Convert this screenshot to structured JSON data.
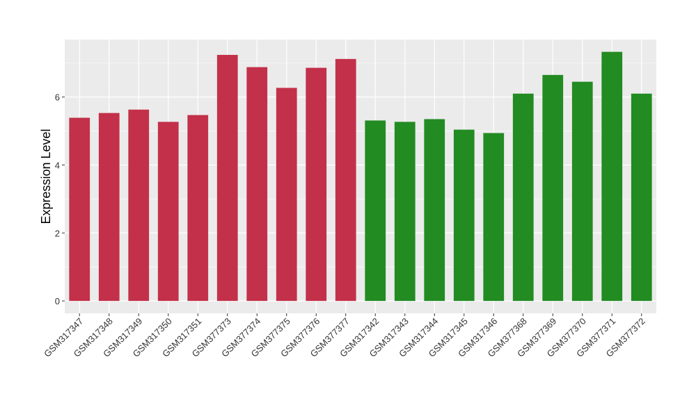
{
  "chart_data": {
    "type": "bar",
    "y_label": "Expression Level",
    "categories": [
      "GSM317347",
      "GSM317348",
      "GSM317349",
      "GSM317350",
      "GSM317351",
      "GSM377373",
      "GSM377374",
      "GSM377375",
      "GSM377376",
      "GSM377377",
      "GSM317342",
      "GSM317343",
      "GSM317344",
      "GSM317345",
      "GSM317346",
      "GSM377368",
      "GSM377369",
      "GSM377370",
      "GSM377371",
      "GSM377372"
    ],
    "values": [
      5.39,
      5.53,
      5.63,
      5.27,
      5.47,
      7.24,
      6.88,
      6.27,
      6.86,
      7.12,
      5.31,
      5.27,
      5.35,
      5.04,
      4.94,
      6.1,
      6.65,
      6.45,
      7.33,
      6.1
    ],
    "colors": [
      "#c3304a",
      "#c3304a",
      "#c3304a",
      "#c3304a",
      "#c3304a",
      "#c3304a",
      "#c3304a",
      "#c3304a",
      "#c3304a",
      "#c3304a",
      "#228b22",
      "#228b22",
      "#228b22",
      "#228b22",
      "#228b22",
      "#228b22",
      "#228b22",
      "#228b22",
      "#228b22",
      "#228b22"
    ],
    "ylim": [
      -0.366,
      7.69
    ],
    "yticks": [
      0,
      2,
      4,
      6
    ],
    "grid": true
  }
}
